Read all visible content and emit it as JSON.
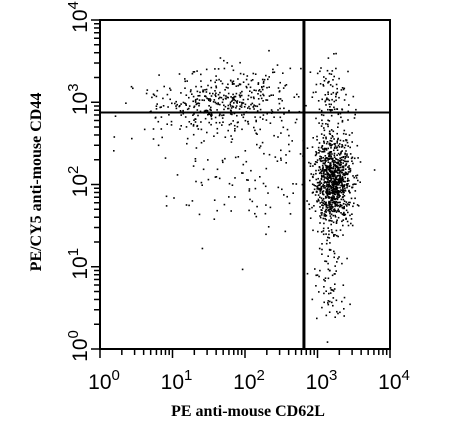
{
  "chart_data": {
    "type": "scatter",
    "title": "",
    "xlabel": "PE anti-mouse CD62L",
    "ylabel": "PE/CY5 anti-mouse CD44",
    "x_scale": "log",
    "y_scale": "log",
    "xlim": [
      1,
      10000
    ],
    "ylim": [
      1,
      10000
    ],
    "x_ticks": [
      {
        "base": "10",
        "exp": "0",
        "value": 1
      },
      {
        "base": "10",
        "exp": "1",
        "value": 10
      },
      {
        "base": "10",
        "exp": "2",
        "value": 100
      },
      {
        "base": "10",
        "exp": "3",
        "value": 1000
      },
      {
        "base": "10",
        "exp": "4",
        "value": 10000
      }
    ],
    "y_ticks": [
      {
        "base": "10",
        "exp": "0",
        "value": 1
      },
      {
        "base": "10",
        "exp": "1",
        "value": 10
      },
      {
        "base": "10",
        "exp": "2",
        "value": 100
      },
      {
        "base": "10",
        "exp": "3",
        "value": 1000
      },
      {
        "base": "10",
        "exp": "4",
        "value": 10000
      }
    ],
    "quadrant_gates": {
      "x": 650,
      "y": 750
    },
    "grid": false,
    "series": [
      {
        "clusters": [
          {
            "center": [
              1600,
              110
            ],
            "spread_log": [
              0.13,
              0.25
            ],
            "n": 950
          },
          {
            "center": [
              1500,
              8
            ],
            "spread_log": [
              0.12,
              0.35
            ],
            "n": 90
          },
          {
            "center": [
              60,
              1100
            ],
            "spread_log": [
              0.45,
              0.18
            ],
            "n": 330
          },
          {
            "center": [
              18,
              700
            ],
            "spread_log": [
              0.5,
              0.15
            ],
            "n": 80
          },
          {
            "center": [
              1600,
              1000
            ],
            "spread_log": [
              0.14,
              0.25
            ],
            "n": 110
          },
          {
            "center": [
              150,
              200
            ],
            "spread_log": [
              0.65,
              0.45
            ],
            "n": 170
          }
        ]
      }
    ]
  }
}
